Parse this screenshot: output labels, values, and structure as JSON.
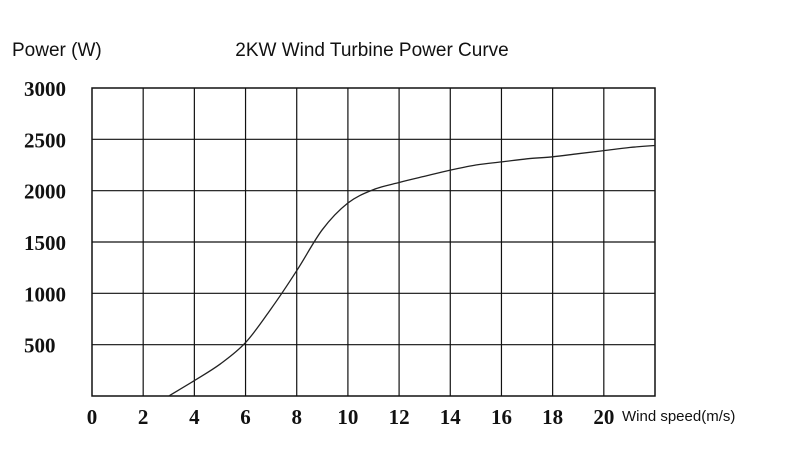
{
  "chart_data": {
    "type": "line",
    "title": "2KW Wind Turbine Power Curve",
    "ylabel": "Power (W)",
    "xlabel": "Wind speed(m/s)",
    "xlim": [
      0,
      22
    ],
    "ylim": [
      0,
      3000
    ],
    "x_ticks": [
      0,
      2,
      4,
      6,
      8,
      10,
      12,
      14,
      16,
      18,
      20
    ],
    "y_ticks": [
      500,
      1000,
      1500,
      2000,
      2500,
      3000
    ],
    "grid": true,
    "series": [
      {
        "color": "#222222",
        "x": [
          3,
          4,
          5,
          6,
          7,
          8,
          9,
          10,
          11,
          12,
          13,
          14,
          15,
          16,
          17,
          18,
          19,
          20,
          21,
          22
        ],
        "y": [
          0,
          150,
          310,
          520,
          850,
          1220,
          1620,
          1880,
          2010,
          2080,
          2140,
          2200,
          2250,
          2280,
          2310,
          2330,
          2360,
          2390,
          2420,
          2440
        ]
      }
    ]
  }
}
